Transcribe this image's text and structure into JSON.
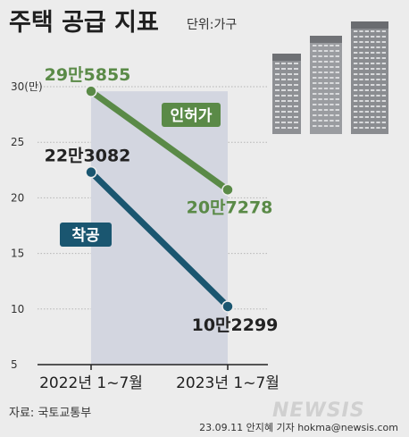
{
  "header": {
    "title": "주택 공급 지표",
    "unit": "단위:가구"
  },
  "chart_data": {
    "type": "line",
    "ylabel_top": "30(만)",
    "ylim": [
      5,
      30
    ],
    "yticks": [
      "30(만)",
      "25",
      "20",
      "15",
      "10",
      "5"
    ],
    "ytick_values": [
      30,
      25,
      20,
      15,
      10,
      5
    ],
    "categories": [
      "2022년  1~7월",
      "2023년  1~7월"
    ],
    "series": [
      {
        "name": "인허가",
        "color": "#5a8a47",
        "values": [
          29.5855,
          20.7278
        ],
        "labels": [
          "29만5855",
          "20만7278"
        ]
      },
      {
        "name": "착공",
        "color": "#1a5670",
        "values": [
          22.3082,
          10.2299
        ],
        "labels": [
          "22만3082",
          "10만2299"
        ]
      }
    ],
    "shade_color": "#d3d6e0"
  },
  "footer": {
    "source": "자료: 국토교통부",
    "credit": "23.09.11  안지혜  기자  hokma@newsis.com",
    "logo": "NEWSIS"
  }
}
